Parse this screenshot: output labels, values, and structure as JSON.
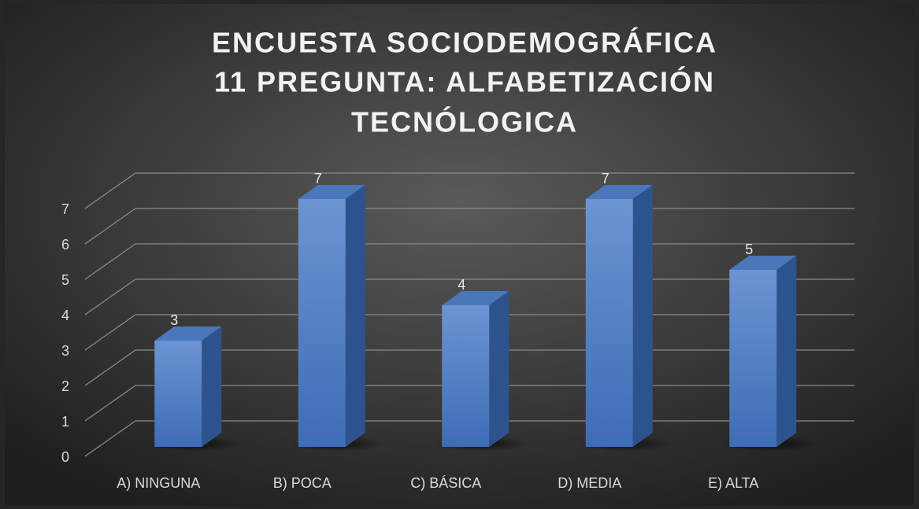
{
  "chart_data": {
    "type": "bar3d",
    "title_lines": [
      "ENCUESTA SOCIODEMOGRÁFICA",
      "11 PREGUNTA: ALFABETIZACIÓN",
      "TECNÓLOGICA"
    ],
    "categories": [
      "A) NINGUNA",
      "B) POCA",
      "C) BÁSICA",
      "D) MEDIA",
      "E) ALTA"
    ],
    "values": [
      3,
      7,
      4,
      7,
      5
    ],
    "color": "#4f7fc4",
    "ylim": [
      0,
      7
    ],
    "yticks": [
      0,
      1,
      2,
      3,
      4,
      5,
      6,
      7
    ],
    "grid": true
  }
}
